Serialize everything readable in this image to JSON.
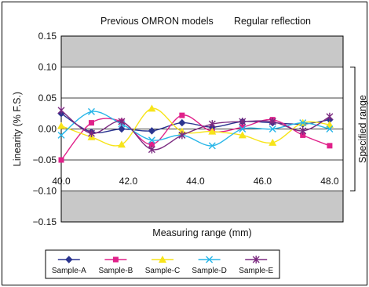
{
  "titles": {
    "left": "Previous OMRON models",
    "right": "Regular reflection"
  },
  "colors": {
    "band": "#c8c8c8",
    "plot_bg": "#ffffff",
    "frame": "#000000"
  },
  "chart_data": {
    "type": "line",
    "xlabel": "Measuring range (mm)",
    "ylabel": "Linearity (% F.S.)",
    "xlim": [
      40,
      48.4
    ],
    "ylim": [
      -0.15,
      0.15
    ],
    "x_ticks": [
      "40.0",
      "42.0",
      "44.0",
      "46.0",
      "48.0"
    ],
    "y_ticks": [
      "0.15",
      "0.10",
      "0.05",
      "0.00",
      "−0.05",
      "−0.10",
      "−0.15"
    ],
    "specified_range": {
      "label": "Specified range",
      "min": -0.1,
      "max": 0.1
    },
    "x": [
      40.0,
      40.9,
      41.8,
      42.7,
      43.6,
      44.5,
      45.4,
      46.3,
      47.2,
      48.0
    ],
    "series": [
      {
        "name": "Sample-A",
        "color": "#2b3590",
        "marker": "diamond",
        "values": [
          0.025,
          -0.005,
          0.0,
          -0.003,
          0.01,
          0.003,
          0.012,
          0.01,
          0.008,
          0.015
        ]
      },
      {
        "name": "Sample-B",
        "color": "#e0218a",
        "marker": "square",
        "values": [
          -0.05,
          0.01,
          0.012,
          -0.025,
          0.022,
          -0.004,
          0.003,
          0.015,
          -0.01,
          -0.027
        ]
      },
      {
        "name": "Sample-C",
        "color": "#f7e41a",
        "marker": "triangle",
        "values": [
          0.005,
          -0.013,
          -0.025,
          0.033,
          -0.004,
          -0.004,
          -0.01,
          -0.022,
          0.01,
          0.007
        ]
      },
      {
        "name": "Sample-D",
        "color": "#29b6e8",
        "marker": "x",
        "values": [
          -0.01,
          0.028,
          0.008,
          -0.018,
          -0.01,
          -0.027,
          0.0,
          0.0,
          0.01,
          0.0
        ]
      },
      {
        "name": "Sample-E",
        "color": "#7b2a80",
        "marker": "star",
        "values": [
          0.03,
          -0.007,
          0.012,
          -0.033,
          -0.01,
          0.008,
          0.012,
          0.012,
          -0.003,
          0.02
        ]
      }
    ]
  }
}
